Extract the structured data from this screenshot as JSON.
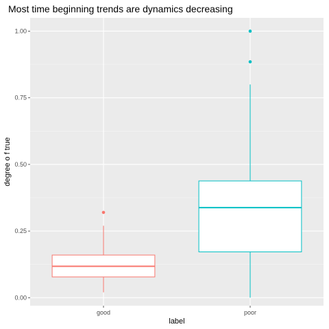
{
  "chart_data": {
    "type": "box",
    "title": "Most time beginning trends are dynamics decreasing",
    "xlabel": "label",
    "ylabel": "degree o f true",
    "categories": [
      "good",
      "poor"
    ],
    "ylim": [
      -0.03,
      1.05
    ],
    "y_ticks": [
      0.0,
      0.25,
      0.5,
      0.75,
      1.0
    ],
    "y_tick_labels": [
      "0.00",
      "0.25",
      "0.50",
      "0.75",
      "1.00"
    ],
    "grid": true,
    "background": "#ebebeb",
    "boxes": [
      {
        "category": "good",
        "color": "#f8766d",
        "lower_whisker": 0.02,
        "q1": 0.078,
        "median": 0.118,
        "q3": 0.16,
        "upper_whisker": 0.27,
        "outliers": [
          0.32
        ]
      },
      {
        "category": "poor",
        "color": "#00bfc4",
        "lower_whisker": 0.0,
        "q1": 0.172,
        "median": 0.338,
        "q3": 0.438,
        "upper_whisker": 0.8,
        "outliers": [
          0.885,
          1.0
        ]
      }
    ]
  }
}
